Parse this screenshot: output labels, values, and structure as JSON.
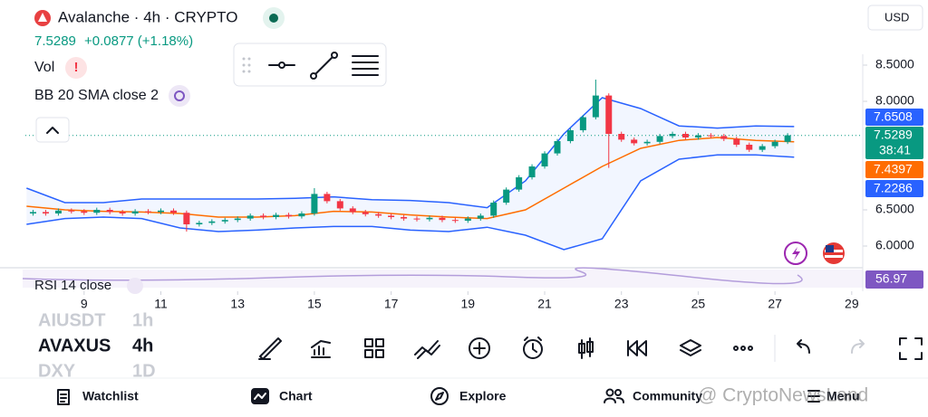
{
  "header": {
    "title": "Avalanche · 4h · CRYPTO",
    "price": "7.5289",
    "change": "+0.0877 (+1.18%)",
    "currency": "USD",
    "indicators": [
      "Vol",
      "BB 20 SMA close 2"
    ]
  },
  "chart": {
    "xlim": [
      7.47,
      29.24
    ],
    "ylim": [
      5.7125,
      8.65
    ],
    "xticks": [
      9,
      11,
      13,
      15,
      17,
      19,
      21,
      23,
      25,
      27,
      29
    ],
    "yticks": [
      {
        "value": 6,
        "label": "6.0000"
      },
      {
        "value": 6.5,
        "label": "6.5000"
      },
      {
        "value": 8,
        "label": "8.0000"
      },
      {
        "value": 8.5,
        "label": "8.5000"
      }
    ],
    "up_color": "#089981",
    "down_color": "#f23645",
    "candles": {
      "x": [
        7.67,
        8,
        8.33,
        8.67,
        9,
        9.33,
        9.67,
        10,
        10.33,
        10.67,
        11,
        11.33,
        11.67,
        12,
        12.33,
        12.67,
        13,
        13.33,
        13.67,
        14,
        14.33,
        14.67,
        15,
        15.33,
        15.67,
        16,
        16.33,
        16.67,
        17,
        17.33,
        17.67,
        18,
        18.33,
        18.67,
        19,
        19.33,
        19.67,
        20,
        20.33,
        20.67,
        21,
        21.33,
        21.67,
        22,
        22.33,
        22.67,
        23,
        23.33,
        23.67,
        24,
        24.33,
        24.67,
        25,
        25.33,
        25.67,
        26,
        26.33,
        26.67,
        27,
        27.33
      ],
      "open": [
        6.45,
        6.47,
        6.45,
        6.49,
        6.48,
        6.46,
        6.5,
        6.47,
        6.45,
        6.48,
        6.47,
        6.49,
        6.46,
        6.3,
        6.32,
        6.34,
        6.36,
        6.38,
        6.42,
        6.4,
        6.43,
        6.41,
        6.45,
        6.72,
        6.62,
        6.52,
        6.47,
        6.44,
        6.42,
        6.4,
        6.38,
        6.37,
        6.39,
        6.36,
        6.35,
        6.38,
        6.42,
        6.6,
        6.78,
        6.95,
        7.1,
        7.28,
        7.45,
        7.6,
        7.78,
        8.08,
        7.55,
        7.47,
        7.42,
        7.44,
        7.52,
        7.55,
        7.5,
        7.53,
        7.52,
        7.48,
        7.4,
        7.33,
        7.38,
        7.44
      ],
      "high": [
        6.5,
        6.5,
        6.52,
        6.52,
        6.51,
        6.53,
        6.53,
        6.5,
        6.51,
        6.51,
        6.52,
        6.52,
        6.49,
        6.35,
        6.37,
        6.39,
        6.41,
        6.45,
        6.45,
        6.46,
        6.46,
        6.48,
        6.8,
        6.75,
        6.65,
        6.55,
        6.5,
        6.47,
        6.45,
        6.43,
        6.41,
        6.42,
        6.42,
        6.39,
        6.41,
        6.45,
        6.63,
        6.81,
        6.98,
        7.13,
        7.31,
        7.48,
        7.63,
        7.81,
        8.3,
        8.11,
        7.58,
        7.5,
        7.47,
        7.55,
        7.58,
        7.58,
        7.56,
        7.56,
        7.55,
        7.51,
        7.43,
        7.41,
        7.47,
        7.56
      ],
      "low": [
        6.42,
        6.42,
        6.42,
        6.45,
        6.43,
        6.43,
        6.44,
        6.42,
        6.42,
        6.44,
        6.44,
        6.43,
        6.2,
        6.27,
        6.29,
        6.31,
        6.33,
        6.35,
        6.37,
        6.37,
        6.38,
        6.38,
        6.42,
        6.59,
        6.49,
        6.44,
        6.41,
        6.39,
        6.37,
        6.35,
        6.34,
        6.34,
        6.33,
        6.32,
        6.32,
        6.35,
        6.39,
        6.57,
        6.75,
        6.92,
        7.07,
        7.25,
        7.42,
        7.57,
        7.75,
        7.08,
        7.44,
        7.39,
        7.39,
        7.41,
        7.49,
        7.47,
        7.47,
        7.49,
        7.45,
        7.37,
        7.3,
        7.3,
        7.35,
        7.41
      ],
      "close": [
        6.47,
        6.45,
        6.49,
        6.48,
        6.46,
        6.5,
        6.47,
        6.45,
        6.48,
        6.47,
        6.49,
        6.46,
        6.3,
        6.32,
        6.34,
        6.36,
        6.38,
        6.42,
        6.4,
        6.43,
        6.41,
        6.45,
        6.72,
        6.62,
        6.52,
        6.47,
        6.44,
        6.42,
        6.4,
        6.38,
        6.37,
        6.39,
        6.36,
        6.35,
        6.38,
        6.42,
        6.6,
        6.78,
        6.95,
        7.1,
        7.28,
        7.45,
        7.6,
        7.78,
        8.08,
        7.55,
        7.47,
        7.42,
        7.44,
        7.52,
        7.55,
        7.5,
        7.53,
        7.52,
        7.48,
        7.4,
        7.33,
        7.38,
        7.44,
        7.53
      ]
    },
    "bands": {
      "x": [
        7.5,
        8.5,
        9.5,
        10.5,
        11.5,
        12.5,
        13.5,
        14.5,
        15.5,
        16.5,
        17.5,
        18.5,
        19.5,
        20.5,
        21.5,
        22.5,
        23.5,
        24.5,
        25.5,
        26.5,
        27.5
      ],
      "upper": [
        6.8,
        6.6,
        6.6,
        6.65,
        6.65,
        6.65,
        6.65,
        6.66,
        6.68,
        6.64,
        6.63,
        6.6,
        6.53,
        6.9,
        7.55,
        8.05,
        7.9,
        7.66,
        7.63,
        7.66,
        7.6508
      ],
      "middle": [
        6.55,
        6.5,
        6.48,
        6.47,
        6.45,
        6.4,
        6.4,
        6.42,
        6.48,
        6.47,
        6.43,
        6.4,
        6.38,
        6.5,
        6.8,
        7.1,
        7.35,
        7.46,
        7.5,
        7.46,
        7.4397
      ],
      "lower": [
        6.3,
        6.38,
        6.4,
        6.38,
        6.25,
        6.2,
        6.22,
        6.25,
        6.27,
        6.27,
        6.22,
        6.2,
        6.26,
        6.15,
        5.95,
        6.1,
        6.9,
        7.2,
        7.26,
        7.26,
        7.2286
      ],
      "band_color": "#2962ff",
      "middle_color": "#ff6d00"
    },
    "price_labels": [
      {
        "value": 7.6508,
        "label": "7.6508",
        "color": "#2962ff"
      },
      {
        "value": 7.5289,
        "label": "7.5289",
        "sub": "38:41",
        "color": "#089981"
      },
      {
        "value": 7.4397,
        "label": "7.4397",
        "color": "#ff6d00"
      },
      {
        "value": 7.2286,
        "label": "7.2286",
        "color": "#2962ff"
      }
    ],
    "rsi": {
      "name": "RSI 14 close",
      "value": "56.97",
      "color": "#7e57c2"
    }
  },
  "symbols": [
    [
      "AIUSDT",
      "1h"
    ],
    [
      "AVAXUS",
      "4h"
    ],
    [
      "DXY",
      "1D"
    ]
  ],
  "nav": [
    "Watchlist",
    "Chart",
    "Explore",
    "Community",
    "Menu"
  ],
  "watermark": "@ CryptoNewsLand"
}
